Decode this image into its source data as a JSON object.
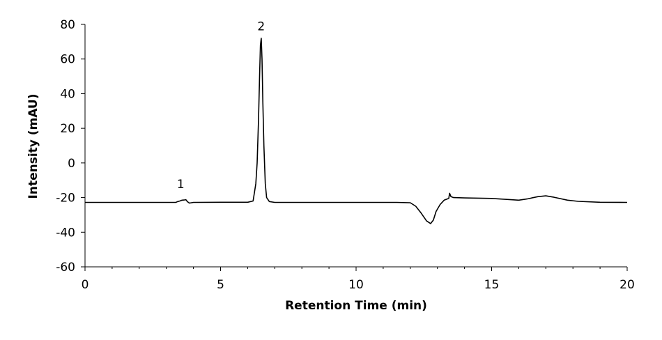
{
  "chart_data": {
    "type": "line",
    "title": "",
    "xlabel": "Retention Time (min)",
    "ylabel": "Intensity (mAU)",
    "xlim": [
      0,
      20
    ],
    "ylim": [
      -60,
      80
    ],
    "xticks": [
      0,
      5,
      10,
      15,
      20
    ],
    "yticks": [
      -60,
      -40,
      -20,
      0,
      20,
      40,
      60,
      80
    ],
    "xtick_labels": [
      "0",
      "5",
      "10",
      "15",
      "20"
    ],
    "ytick_labels": [
      "-60",
      "-40",
      "-20",
      "0",
      "20",
      "40",
      "60",
      "80"
    ],
    "x_minor_step": 1,
    "grid": false,
    "legend": "none",
    "line_color": "#000000",
    "series": [
      {
        "x": [
          0,
          1,
          2,
          3,
          3.35,
          3.42,
          3.5,
          3.58,
          3.65,
          3.72,
          3.78,
          3.85,
          4.0,
          5.0,
          6.0,
          6.2,
          6.3,
          6.35,
          6.4,
          6.44,
          6.47,
          6.5,
          6.53,
          6.56,
          6.6,
          6.65,
          6.7,
          6.8,
          7.0,
          8.0,
          10.0,
          11.5,
          12.0,
          12.2,
          12.4,
          12.6,
          12.75,
          12.85,
          12.95,
          13.1,
          13.25,
          13.42,
          13.45,
          13.5,
          13.6,
          14.0,
          15.0,
          15.5,
          16.0,
          16.3,
          16.7,
          17.0,
          17.3,
          17.8,
          18.2,
          19.0,
          20.0
        ],
        "y": [
          -22.8,
          -22.8,
          -22.8,
          -22.8,
          -22.8,
          -22.3,
          -22.0,
          -21.5,
          -21.4,
          -21.2,
          -22.4,
          -23.2,
          -22.8,
          -22.7,
          -22.7,
          -22.0,
          -12.0,
          0.0,
          25.0,
          50.0,
          68.0,
          72.0,
          60.0,
          35.0,
          10.0,
          -12.0,
          -20.0,
          -22.3,
          -22.8,
          -22.8,
          -22.8,
          -22.8,
          -23.0,
          -25.0,
          -29.0,
          -33.5,
          -35.0,
          -33.0,
          -28.0,
          -24.0,
          -21.5,
          -20.5,
          -17.5,
          -19.5,
          -20.0,
          -20.2,
          -20.5,
          -21.0,
          -21.5,
          -20.8,
          -19.5,
          -19.0,
          -19.8,
          -21.5,
          -22.2,
          -22.7,
          -22.8
        ]
      }
    ],
    "annotations": [
      {
        "text": "1",
        "x": 3.53,
        "y": -14.5
      },
      {
        "text": "2",
        "x": 6.5,
        "y": 76.5
      }
    ]
  }
}
